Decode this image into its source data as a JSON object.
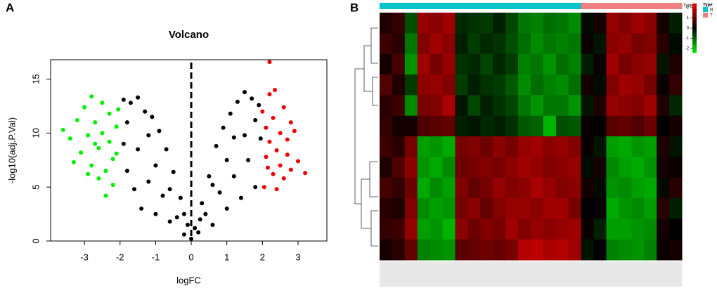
{
  "chart_data": [
    {
      "type": "scatter",
      "panel": "A",
      "title": "Volcano",
      "xlabel": "logFC",
      "ylabel": "-log10(adj.P.Val)",
      "xlim": [
        -3.95,
        3.81
      ],
      "ylim": [
        0,
        16.8
      ],
      "xticks": [
        -3,
        -2,
        -1,
        0,
        1,
        2,
        3
      ],
      "yticks": [
        0,
        5,
        10,
        15
      ],
      "vline": 0,
      "series": [
        {
          "color": "#000000",
          "x": [
            -1.9,
            -1.7,
            -1.5,
            -1.3,
            -1.1,
            -0.9,
            -0.7,
            -0.5,
            -0.3,
            -0.1,
            0.1,
            0.3,
            0.5,
            0.7,
            0.9,
            1.1,
            1.3,
            1.5,
            1.7,
            1.9,
            -1.9,
            -1.8,
            -1.6,
            -1.4,
            -1.2,
            -1.0,
            -0.8,
            -0.6,
            -0.4,
            -0.2,
            0.0,
            0.2,
            0.4,
            0.6,
            0.8,
            1.0,
            1.2,
            1.4,
            1.6,
            1.8,
            1.95,
            -1.5,
            -1.0,
            -0.6,
            0.6,
            1.0,
            1.5,
            -1.8,
            1.8,
            -0.2,
            0.25,
            -1.2,
            1.2
          ],
          "y": [
            13.1,
            12.8,
            13.3,
            12.0,
            11.5,
            10.2,
            8.5,
            6.4,
            4.0,
            1.5,
            1.2,
            3.5,
            6.0,
            8.8,
            10.5,
            11.8,
            12.9,
            13.8,
            13.2,
            12.6,
            9.0,
            6.5,
            4.8,
            3.0,
            5.5,
            2.5,
            4.2,
            1.8,
            2.2,
            0.6,
            0.2,
            0.8,
            2.5,
            1.5,
            4.5,
            3.0,
            6.0,
            4.0,
            7.5,
            5.0,
            9.5,
            8.5,
            7.0,
            4.8,
            5.2,
            7.5,
            9.8,
            11.0,
            11.2,
            2.5,
            2.0,
            9.8,
            9.6
          ]
        },
        {
          "color": "#00ee00",
          "x": [
            -3.6,
            -3.4,
            -3.2,
            -3.1,
            -3.0,
            -2.9,
            -2.8,
            -2.8,
            -2.7,
            -2.6,
            -2.6,
            -2.5,
            -2.5,
            -2.4,
            -2.4,
            -2.3,
            -2.3,
            -2.2,
            -2.2,
            -2.1,
            -2.1,
            -2.05,
            -3.3,
            -2.9,
            -2.7
          ],
          "y": [
            10.3,
            9.5,
            11.2,
            8.2,
            12.4,
            9.8,
            13.4,
            7.0,
            11.0,
            5.8,
            8.6,
            12.8,
            10.0,
            6.5,
            4.2,
            9.2,
            11.8,
            7.6,
            5.2,
            10.6,
            8.1,
            12.2,
            7.3,
            6.2,
            9.0
          ]
        },
        {
          "color": "#ee0000",
          "x": [
            2.0,
            2.1,
            2.1,
            2.2,
            2.2,
            2.2,
            2.3,
            2.3,
            2.4,
            2.4,
            2.5,
            2.5,
            2.6,
            2.6,
            2.7,
            2.7,
            2.8,
            2.9,
            3.0,
            3.2,
            2.05,
            2.35,
            2.8,
            2.15
          ],
          "y": [
            12.0,
            10.5,
            7.8,
            16.6,
            13.6,
            9.2,
            6.2,
            11.4,
            8.4,
            4.8,
            10.0,
            7.0,
            12.4,
            5.8,
            9.4,
            8.0,
            6.6,
            10.2,
            7.4,
            6.3,
            5.0,
            14.0,
            11.0,
            6.8
          ]
        }
      ]
    },
    {
      "type": "heatmap",
      "panel": "B",
      "colorscale": {
        "colors": [
          "#00ee00",
          "#000000",
          "#ee0000"
        ],
        "range": [
          -2.4,
          2.4
        ],
        "ticks": [
          2,
          1,
          0,
          -1,
          -2
        ]
      },
      "annotation": {
        "title": "Type",
        "levels": [
          "N",
          "T"
        ],
        "colors": [
          "#00c5cd",
          "#f08080"
        ],
        "columns": [
          0,
          0,
          0,
          0,
          0,
          0,
          0,
          0,
          0,
          0,
          0,
          0,
          0,
          0,
          0,
          0,
          1,
          1,
          1,
          1,
          1,
          1,
          1,
          1
        ]
      },
      "matrix": [
        [
          0.3,
          0.5,
          -0.8,
          1.5,
          1.4,
          1.6,
          -0.4,
          -0.5,
          -0.6,
          -0.3,
          -0.7,
          -1.2,
          -1.3,
          -1.1,
          -1.2,
          -1.4,
          -0.1,
          0.2,
          1.5,
          1.3,
          1.6,
          1.4,
          0.2,
          -0.3
        ],
        [
          0.6,
          0.4,
          -1.2,
          1.3,
          1.6,
          1.4,
          -0.3,
          -0.6,
          -0.4,
          -0.5,
          -0.8,
          -1.1,
          -1.4,
          -1.2,
          -1.3,
          -1.2,
          0.1,
          -0.2,
          1.4,
          1.5,
          1.2,
          1.3,
          0.4,
          -0.1
        ],
        [
          0.2,
          0.7,
          -1.5,
          1.6,
          1.2,
          1.5,
          -0.5,
          -0.4,
          -0.7,
          -0.4,
          -0.6,
          -1.3,
          -1.2,
          -1.5,
          -1.1,
          -1.3,
          -0.3,
          0.1,
          1.6,
          1.2,
          1.4,
          1.5,
          -0.2,
          0.3
        ],
        [
          0.8,
          0.3,
          -0.6,
          1.4,
          1.5,
          1.3,
          -0.6,
          -0.3,
          -0.5,
          -0.6,
          -0.9,
          -1.4,
          -1.1,
          -1.3,
          -1.4,
          -1.1,
          0.2,
          -0.1,
          1.3,
          1.6,
          1.5,
          1.2,
          0.1,
          0.5
        ],
        [
          0.4,
          0.6,
          -1.4,
          1.2,
          1.3,
          1.7,
          -0.2,
          -0.7,
          -0.3,
          -0.5,
          -0.7,
          -1.2,
          -1.5,
          -1.2,
          -1.2,
          -1.5,
          -0.2,
          0.3,
          1.5,
          1.4,
          1.3,
          1.6,
          0.3,
          -0.4
        ],
        [
          0.5,
          0.2,
          0.2,
          0.8,
          0.9,
          1.0,
          -0.3,
          -0.2,
          -0.4,
          -0.3,
          -0.5,
          -0.9,
          -1.0,
          -1.8,
          -0.8,
          -0.9,
          0.1,
          0.0,
          0.9,
          1.0,
          0.8,
          1.1,
          0.0,
          0.2
        ],
        [
          0.6,
          0.4,
          1.2,
          -1.6,
          -1.5,
          -1.7,
          1.2,
          1.3,
          1.1,
          1.4,
          1.2,
          1.5,
          1.6,
          1.4,
          1.5,
          1.3,
          0.1,
          -0.2,
          -1.6,
          -1.7,
          -1.5,
          -1.6,
          0.3,
          -0.2
        ],
        [
          0.3,
          0.8,
          1.4,
          -1.5,
          -1.7,
          -1.4,
          1.1,
          1.2,
          1.3,
          1.2,
          1.4,
          1.6,
          1.5,
          1.3,
          1.4,
          1.5,
          -0.1,
          0.2,
          -1.4,
          -1.6,
          -1.7,
          -1.5,
          0.2,
          0.1
        ],
        [
          0.7,
          0.5,
          1.1,
          -1.7,
          -1.4,
          -1.6,
          1.3,
          1.0,
          1.2,
          1.5,
          1.3,
          1.4,
          1.7,
          1.5,
          1.3,
          1.4,
          0.2,
          -0.1,
          -1.5,
          -1.4,
          -1.6,
          -1.7,
          -0.1,
          0.4
        ],
        [
          0.4,
          0.3,
          1.3,
          -1.4,
          -1.6,
          -1.5,
          1.2,
          1.4,
          1.0,
          1.3,
          1.5,
          1.5,
          1.4,
          1.6,
          1.6,
          1.2,
          0.0,
          0.1,
          -1.7,
          -1.5,
          -1.4,
          -1.6,
          0.4,
          -0.3
        ],
        [
          0.5,
          0.6,
          1.5,
          -1.6,
          -1.5,
          -1.8,
          1.4,
          1.1,
          1.3,
          1.2,
          1.6,
          1.3,
          1.5,
          1.4,
          1.5,
          1.6,
          0.1,
          -0.3,
          -1.6,
          -1.6,
          -1.5,
          -1.4,
          0.2,
          0.0
        ],
        [
          0.2,
          0.4,
          1.0,
          -1.3,
          -1.4,
          -1.5,
          0.9,
          1.0,
          1.1,
          1.0,
          1.2,
          1.8,
          1.9,
          1.7,
          1.8,
          1.6,
          -0.2,
          0.0,
          -1.3,
          -1.4,
          -1.5,
          -1.3,
          0.1,
          0.2
        ]
      ]
    }
  ]
}
